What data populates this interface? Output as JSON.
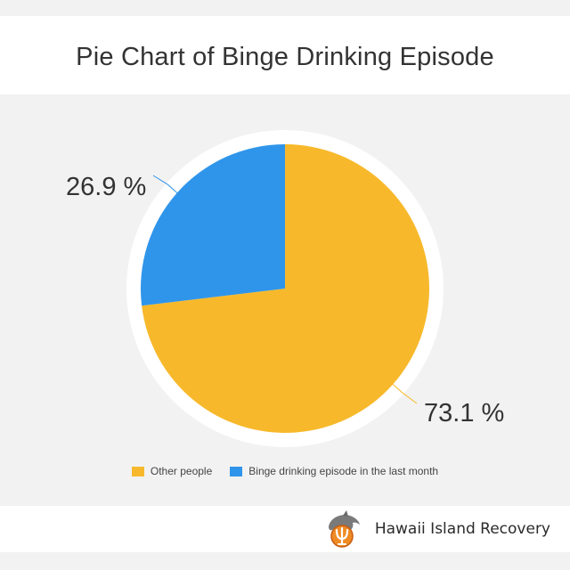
{
  "title": "Pie Chart of Binge Drinking Episode",
  "colors": {
    "other": "#f7b92b",
    "binge": "#2f95ea",
    "leader_binge": "#2f95ea",
    "leader_other": "#f7b92b"
  },
  "chart_data": {
    "type": "pie",
    "title": "Pie Chart of Binge Drinking Episode",
    "slices": [
      {
        "name": "Other people",
        "value": 73.1,
        "label": "73.1 %",
        "color": "#f7b92b"
      },
      {
        "name": "Binge drinking episode in the last month",
        "value": 26.9,
        "label": "26.9 %",
        "color": "#2f95ea"
      }
    ],
    "legend_placement": "bottom"
  },
  "legend": {
    "items": [
      {
        "label": "Other people",
        "color": "#f7b92b"
      },
      {
        "label": "Binge drinking episode in the last month",
        "color": "#2f95ea"
      }
    ]
  },
  "footer": {
    "brand_name": "Hawaii Island Recovery",
    "logo_icon": "dolphin-psi-logo-icon"
  }
}
